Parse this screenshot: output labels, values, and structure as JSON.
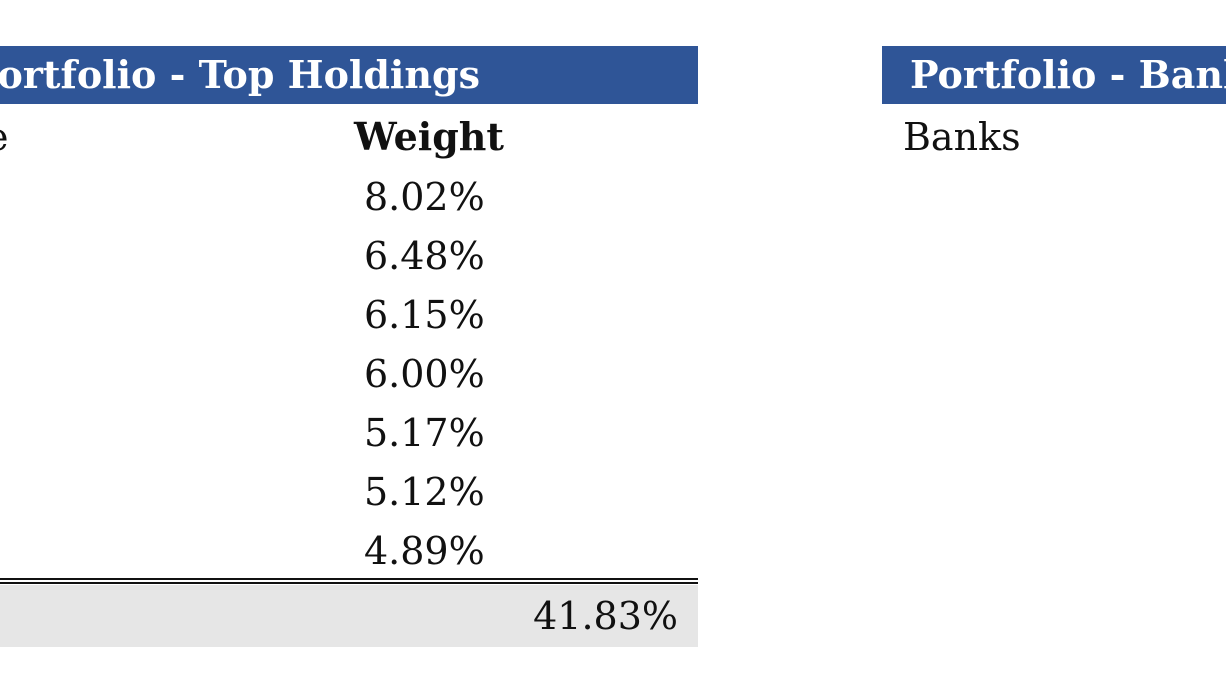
{
  "left_table": {
    "title": "Portfolio - Top Holdings",
    "name_header_fragment": "e",
    "weight_header": "Weight",
    "weights": [
      "8.02%",
      "6.48%",
      "6.15%",
      "6.00%",
      "5.17%",
      "5.12%",
      "4.89%"
    ],
    "total": "41.83%"
  },
  "right_table": {
    "title": "Portfolio - Banks",
    "column_header": "Banks"
  },
  "colors": {
    "header_bg": "#2f5597",
    "header_text": "#ffffff",
    "total_bg": "#e6e6e6"
  }
}
